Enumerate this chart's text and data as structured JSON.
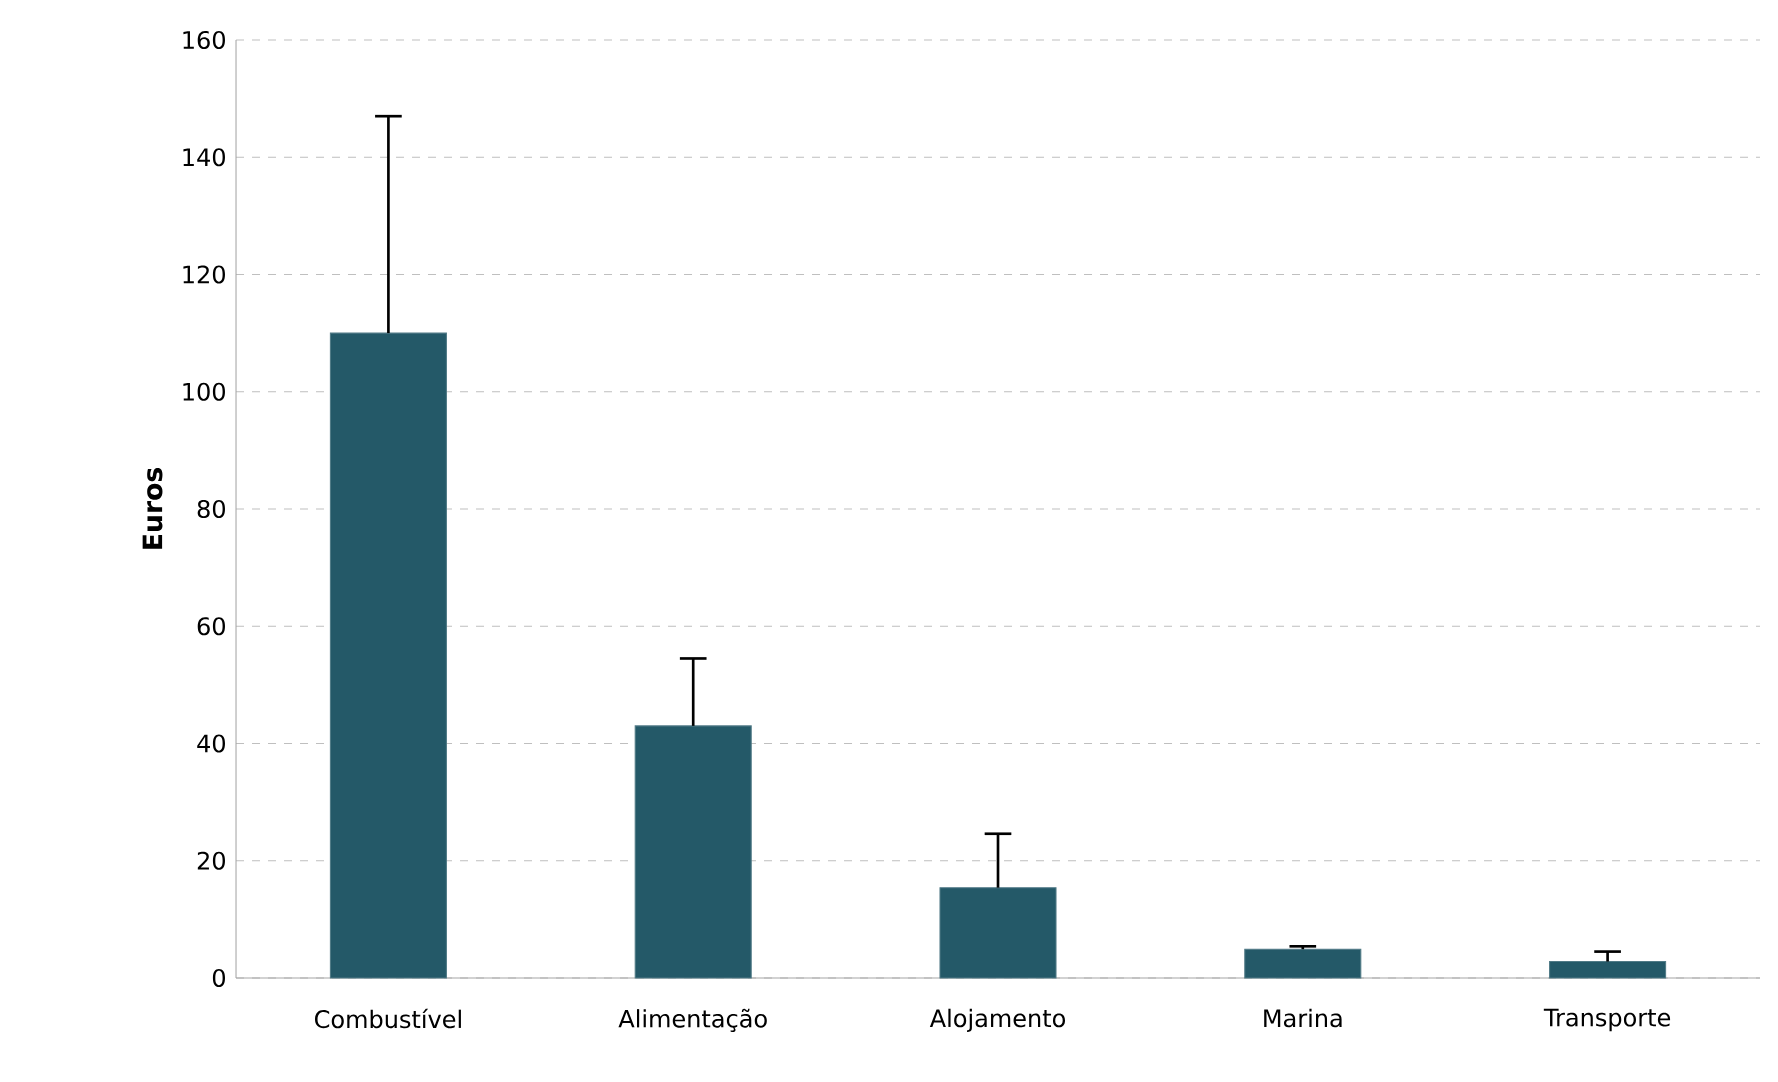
{
  "chart_data": {
    "type": "bar",
    "ylabel": "Euros",
    "categories": [
      "Combustível",
      "Alimentação",
      "Alojamento",
      "Marina",
      "Transporte"
    ],
    "values": [
      110,
      43,
      15.4,
      4.9,
      2.8
    ],
    "errors": [
      37,
      11.5,
      9.2,
      0.5,
      1.7
    ],
    "color": "#245968",
    "ylim": [
      0,
      160
    ],
    "yticks": [
      0,
      20,
      40,
      60,
      80,
      100,
      120,
      140,
      160
    ],
    "grid": "y"
  }
}
